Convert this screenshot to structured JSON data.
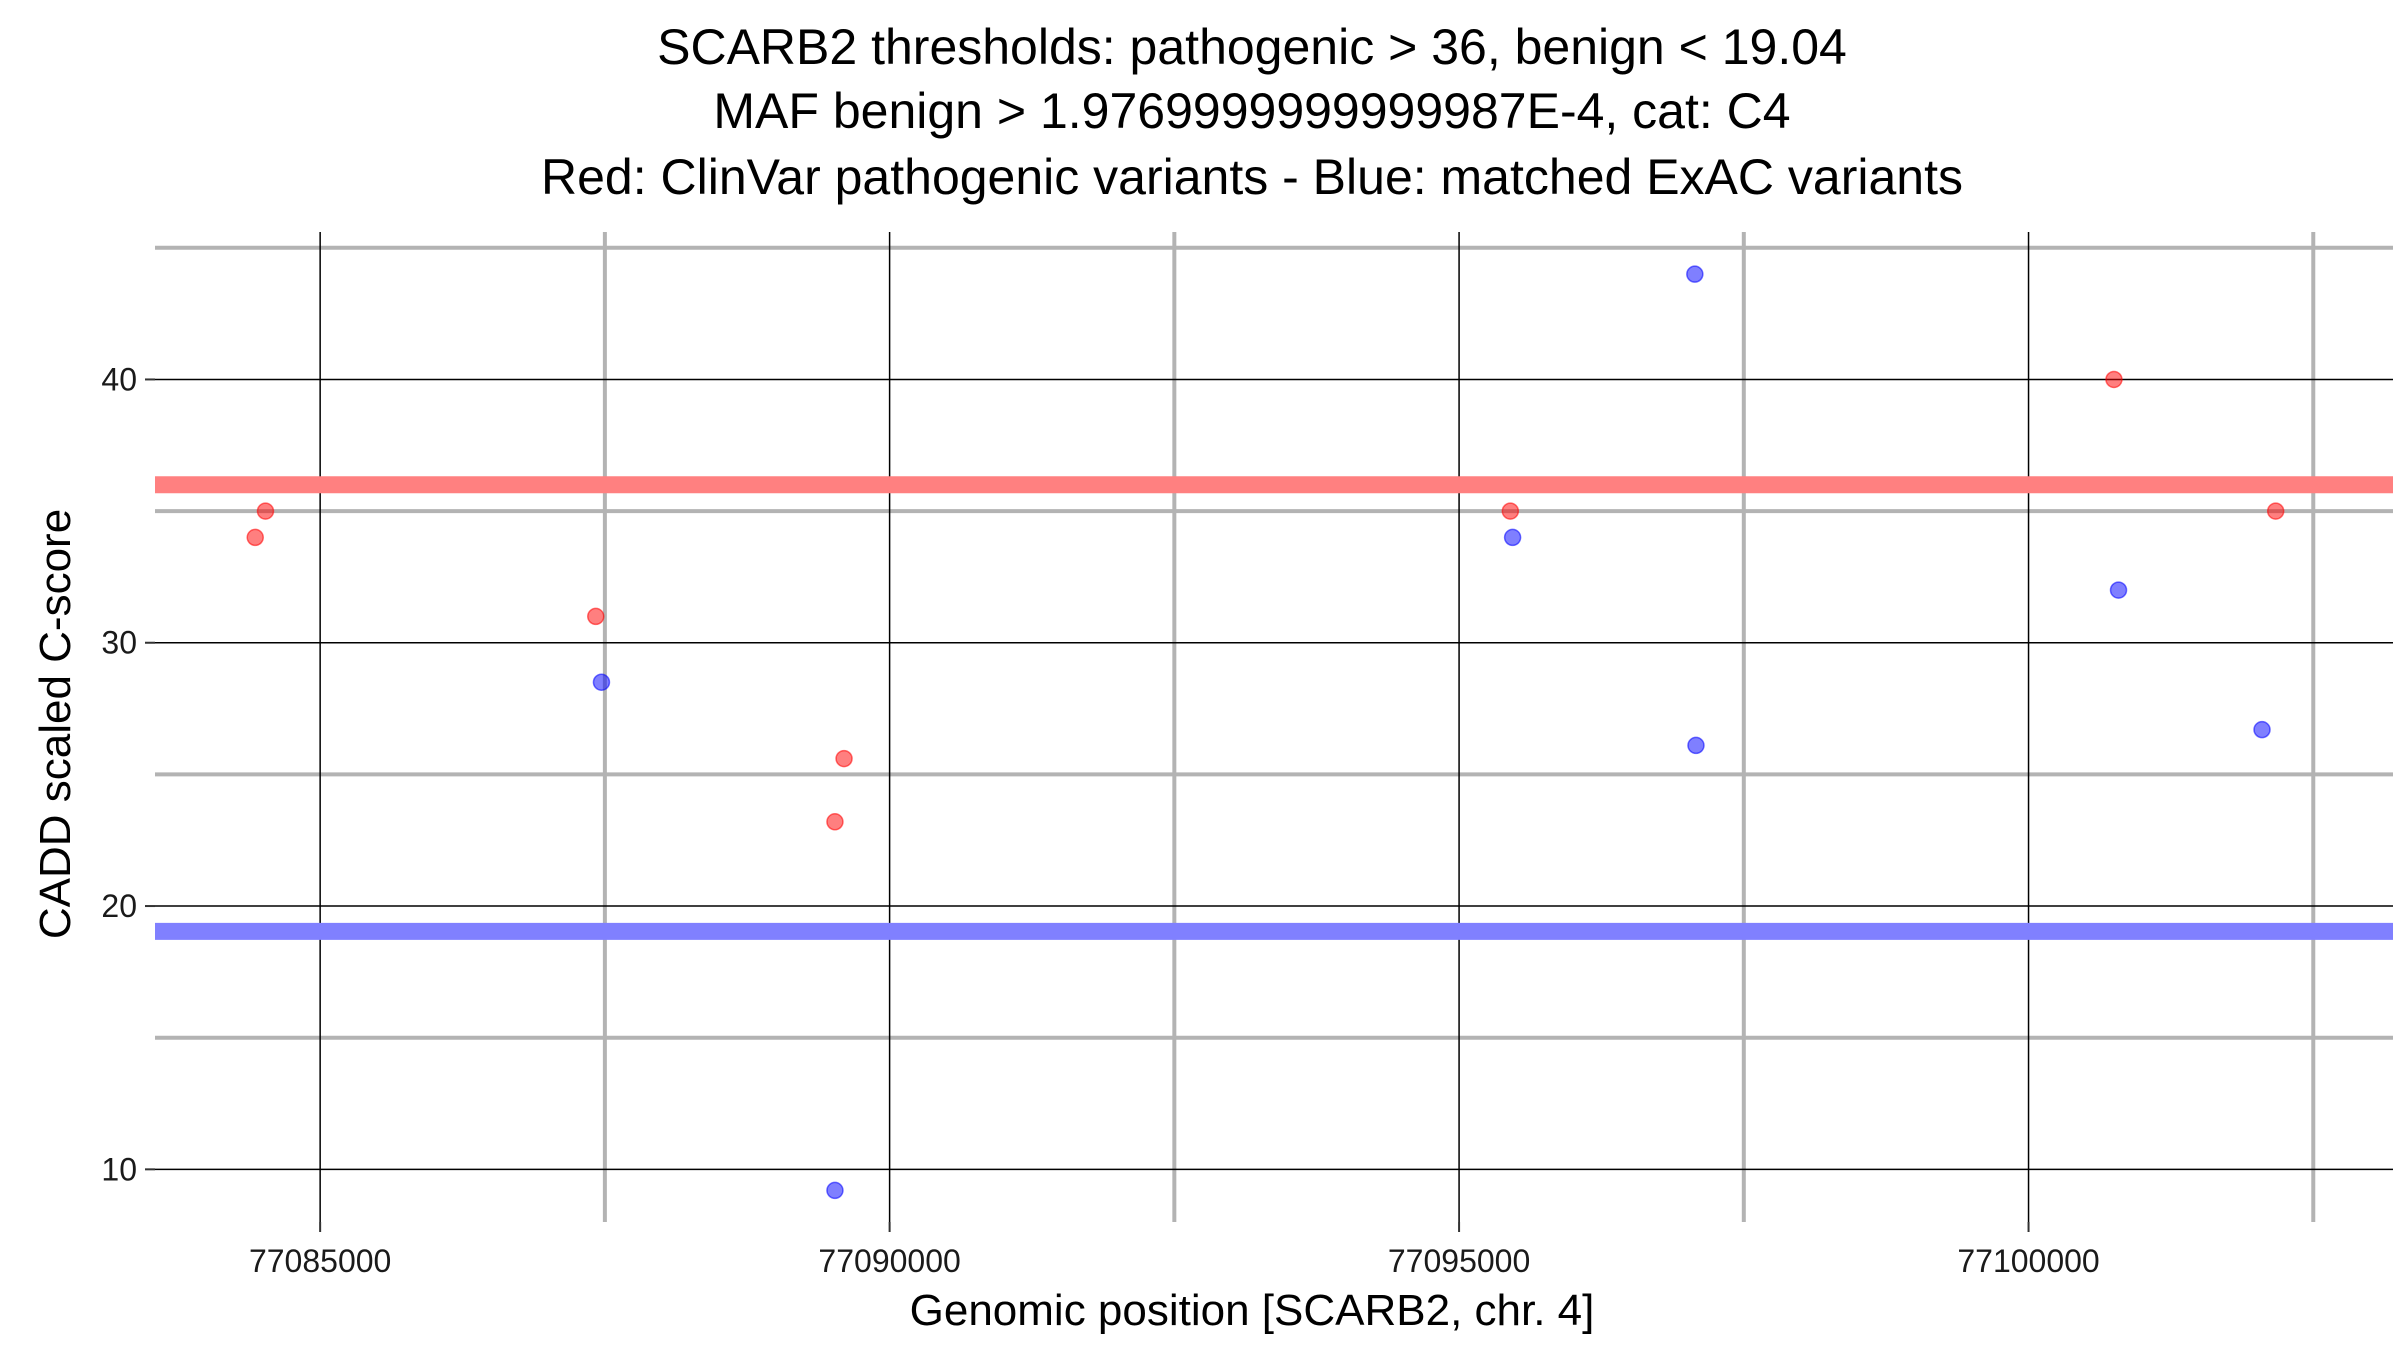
{
  "chart_data": {
    "type": "scatter",
    "title_lines": [
      "SCARB2 thresholds: pathogenic > 36, benign < 19.04",
      "MAF benign > 1.9769999999999987E-4, cat: C4",
      "Red: ClinVar pathogenic variants - Blue: matched ExAC variants"
    ],
    "xlabel": "Genomic position [SCARB2, chr. 4]",
    "ylabel": "CADD scaled C-score",
    "xlim": [
      77083550,
      77103200
    ],
    "ylim": [
      8,
      45.6
    ],
    "x_ticks": [
      77085000,
      77090000,
      77095000,
      77100000
    ],
    "x_tick_labels": [
      "77085000",
      "77090000",
      "77095000",
      "77100000"
    ],
    "y_ticks": [
      10,
      20,
      30,
      40
    ],
    "y_tick_labels": [
      "10",
      "20",
      "30",
      "40"
    ],
    "x_minor_grid": [
      77087500,
      77092500,
      77097500,
      77102500
    ],
    "y_minor_grid": [
      15,
      25,
      35,
      45
    ],
    "grid": true,
    "thresholds": [
      {
        "name": "pathogenic",
        "value": 36,
        "color": "#ff8080"
      },
      {
        "name": "benign",
        "value": 19.04,
        "color": "#8080ff"
      }
    ],
    "series": [
      {
        "color": "#ff0000",
        "points": [
          {
            "x": 77084430,
            "y": 34
          },
          {
            "x": 77084520,
            "y": 35
          },
          {
            "x": 77087420,
            "y": 31
          },
          {
            "x": 77089520,
            "y": 23.2
          },
          {
            "x": 77089600,
            "y": 25.6
          },
          {
            "x": 77095450,
            "y": 35
          },
          {
            "x": 77100750,
            "y": 40
          },
          {
            "x": 77102170,
            "y": 35
          }
        ]
      },
      {
        "color": "#0000ff",
        "points": [
          {
            "x": 77087470,
            "y": 28.5
          },
          {
            "x": 77089520,
            "y": 9.2
          },
          {
            "x": 77095470,
            "y": 34
          },
          {
            "x": 77097070,
            "y": 44
          },
          {
            "x": 77097080,
            "y": 26.1
          },
          {
            "x": 77100790,
            "y": 32
          },
          {
            "x": 77102050,
            "y": 26.7
          }
        ]
      }
    ]
  }
}
